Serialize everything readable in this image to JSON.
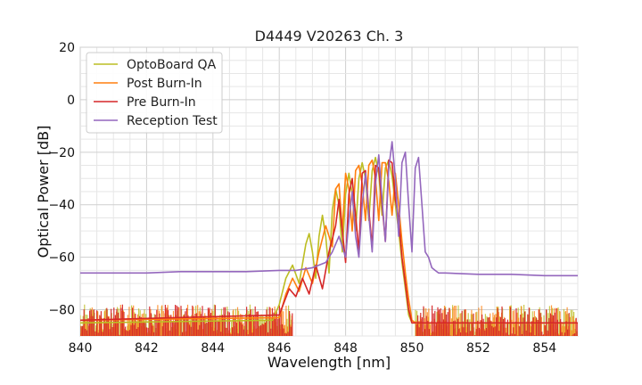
{
  "chart_data": {
    "type": "line",
    "title": "D4449 V20263 Ch. 3",
    "xlabel": "Wavelength [nm]",
    "ylabel": "Optical Power [dB]",
    "xlim": [
      840,
      855
    ],
    "ylim": [
      -90,
      20
    ],
    "xticks": [
      840,
      842,
      844,
      846,
      848,
      850,
      852,
      854
    ],
    "yticks": [
      20,
      0,
      -20,
      -40,
      -60,
      -80
    ],
    "xtick_labels": [
      "840",
      "842",
      "844",
      "846",
      "848",
      "850",
      "852",
      "854"
    ],
    "ytick_labels": [
      "20",
      "0",
      "−20",
      "−40",
      "−60",
      "−80"
    ],
    "grid": true,
    "legend_position": "top-left",
    "noise_floor": {
      "x_range": [
        840,
        855
      ],
      "y_range": [
        -90,
        -78
      ]
    },
    "series": [
      {
        "name": "OptoBoard QA",
        "color": "#bcbd22",
        "x": [
          840,
          845.8,
          846.0,
          846.2,
          846.4,
          846.6,
          846.8,
          846.9,
          847.0,
          847.1,
          847.2,
          847.3,
          847.4,
          847.5,
          847.6,
          847.7,
          847.8,
          847.9,
          848.0,
          848.1,
          848.2,
          848.3,
          848.4,
          848.5,
          848.6,
          848.7,
          848.8,
          848.9,
          849.0,
          849.1,
          849.2,
          849.3,
          849.4,
          849.5,
          849.6,
          849.7,
          849.8,
          849.9,
          850.0,
          855
        ],
        "y": [
          -85,
          -84,
          -78,
          -68,
          -63,
          -70,
          -55,
          -51,
          -58,
          -68,
          -52,
          -44,
          -52,
          -66,
          -42,
          -34,
          -40,
          -58,
          -36,
          -28,
          -36,
          -50,
          -30,
          -24,
          -30,
          -46,
          -27,
          -22,
          -28,
          -44,
          -26,
          -23,
          -29,
          -40,
          -50,
          -62,
          -72,
          -82,
          -85,
          -85
        ]
      },
      {
        "name": "Post Burn-In",
        "color": "#ff7f0e",
        "x": [
          840,
          846.0,
          846.2,
          846.4,
          846.6,
          846.8,
          847.0,
          847.2,
          847.4,
          847.6,
          847.7,
          847.8,
          847.9,
          848.0,
          848.1,
          848.2,
          848.3,
          848.4,
          848.5,
          848.6,
          848.7,
          848.8,
          848.9,
          849.0,
          849.1,
          849.2,
          849.3,
          849.4,
          849.5,
          849.6,
          849.7,
          849.8,
          849.9,
          850.0,
          850.1,
          855
        ],
        "y": [
          -84,
          -83,
          -74,
          -68,
          -73,
          -64,
          -70,
          -58,
          -48,
          -56,
          -34,
          -32,
          -50,
          -28,
          -34,
          -50,
          -27,
          -25,
          -32,
          -46,
          -25,
          -23,
          -30,
          -46,
          -24,
          -24,
          -31,
          -44,
          -28,
          -40,
          -54,
          -66,
          -76,
          -84,
          -85,
          -85
        ]
      },
      {
        "name": "Pre Burn-In",
        "color": "#d62728",
        "x": [
          840,
          846.0,
          846.3,
          846.5,
          846.7,
          846.9,
          847.1,
          847.3,
          847.5,
          847.7,
          847.8,
          847.9,
          848.0,
          848.1,
          848.2,
          848.3,
          848.4,
          848.5,
          848.6,
          848.7,
          848.8,
          848.9,
          849.0,
          849.1,
          849.2,
          849.3,
          849.4,
          849.5,
          849.6,
          849.7,
          849.8,
          849.9,
          850.0,
          855
        ],
        "y": [
          -84,
          -82,
          -72,
          -75,
          -68,
          -74,
          -63,
          -72,
          -58,
          -48,
          -38,
          -50,
          -62,
          -36,
          -30,
          -44,
          -58,
          -28,
          -27,
          -42,
          -56,
          -25,
          -26,
          -40,
          -54,
          -23,
          -24,
          -38,
          -45,
          -60,
          -70,
          -80,
          -85,
          -85
        ]
      },
      {
        "name": "Reception Test",
        "color": "#9467bd",
        "x": [
          840,
          841,
          842,
          843,
          844,
          845,
          846.0,
          846.5,
          847.0,
          847.4,
          847.6,
          847.8,
          848.0,
          848.1,
          848.2,
          848.3,
          848.4,
          848.5,
          848.6,
          848.7,
          848.8,
          848.9,
          849.0,
          849.1,
          849.2,
          849.3,
          849.4,
          849.5,
          849.6,
          849.7,
          849.8,
          849.9,
          850.0,
          850.1,
          850.2,
          850.3,
          850.4,
          850.5,
          850.6,
          850.7,
          850.8,
          851.0,
          852,
          853,
          854,
          855
        ],
        "y": [
          -66,
          -66,
          -66,
          -65.5,
          -65.5,
          -65.5,
          -65,
          -65,
          -64,
          -62,
          -58,
          -52,
          -60,
          -46,
          -35,
          -52,
          -60,
          -40,
          -28,
          -44,
          -58,
          -32,
          -21,
          -38,
          -54,
          -26,
          -16,
          -30,
          -52,
          -24,
          -20,
          -40,
          -58,
          -26,
          -22,
          -40,
          -58,
          -60,
          -64,
          -65,
          -66,
          -66,
          -66.5,
          -66.5,
          -67,
          -67
        ]
      }
    ]
  }
}
